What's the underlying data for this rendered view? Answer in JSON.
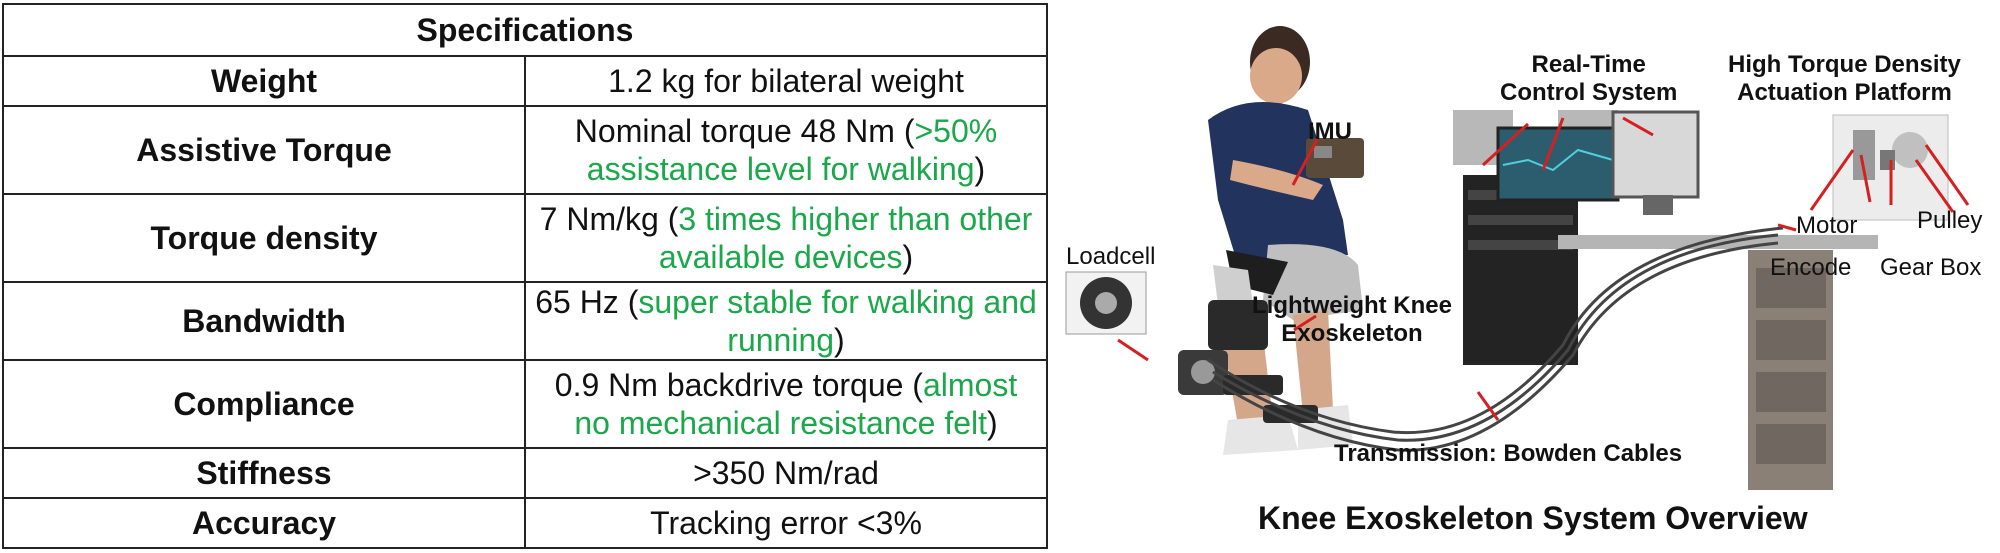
{
  "table": {
    "title": "Specifications",
    "rows": [
      {
        "label": "Weight",
        "value": "1.2 kg for bilateral weight",
        "note": "",
        "suffix": ""
      },
      {
        "label": "Assistive Torque",
        "value": "Nominal torque 48 Nm (",
        "note": ">50% assistance level for walking",
        "suffix": ")"
      },
      {
        "label": "Torque density",
        "value": "7 Nm/kg (",
        "note": "3 times higher than other available devices",
        "suffix": ")"
      },
      {
        "label": "Bandwidth",
        "value": "65 Hz (",
        "note": "super stable for walking and running",
        "suffix": ")"
      },
      {
        "label": "Compliance",
        "value": "0.9 Nm backdrive torque (",
        "note": "almost no mechanical resistance felt",
        "suffix": ")"
      },
      {
        "label": "Stiffness",
        "value": ">350 Nm/rad",
        "note": "",
        "suffix": ""
      },
      {
        "label": "Accuracy",
        "value": "Tracking error <3%",
        "note": "",
        "suffix": ""
      }
    ]
  },
  "colors": {
    "note_green": "#1aa84a",
    "callout_red": "#d42020",
    "border": "#222222"
  },
  "diagram": {
    "labels": {
      "imu": "IMU",
      "loadcell": "Loadcell",
      "knee_line1": "Lightweight Knee",
      "knee_line2": "Exoskeleton",
      "rtc_line1": "Real-Time",
      "rtc_line2": "Control System",
      "htd_line1": "High Torque Density",
      "htd_line2": "Actuation Platform",
      "pulley": "Pulley",
      "motor": "Motor",
      "encode": "Encode",
      "gear_box": "Gear Box",
      "transmission": "Transmission: Bowden Cables"
    },
    "caption": "Knee Exoskeleton System Overview"
  }
}
